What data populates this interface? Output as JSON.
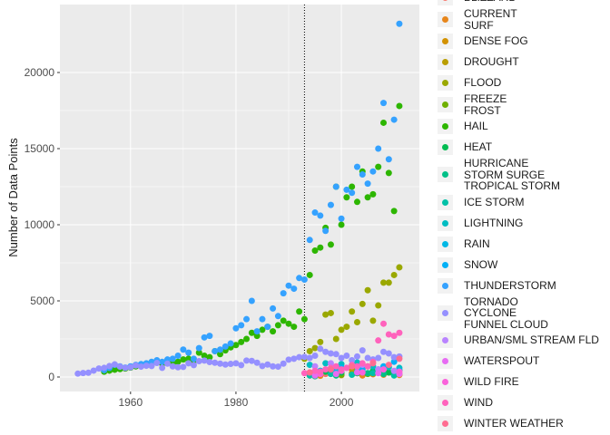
{
  "chart_data": {
    "type": "scatter",
    "ylabel": "Number of Data Points",
    "xlim": [
      1946.6,
      2014.8
    ],
    "xticks": [
      1960,
      1980,
      2000
    ],
    "ylim": [
      -952,
      24464
    ],
    "yticks": [
      0,
      5000,
      10000,
      15000,
      20000
    ],
    "grid": true,
    "vlines": [
      1993
    ],
    "legend": "right",
    "series": [
      {
        "name": "BLIZZARD",
        "color": "#F8766D",
        "x": [
          1994,
          1997,
          2000,
          2003,
          2006,
          2009,
          2011
        ],
        "values": [
          100,
          200,
          150,
          250,
          180,
          300,
          200
        ]
      },
      {
        "name": "CURRENT\nSURF",
        "color": "#E7861B",
        "x": [
          1996,
          2000,
          2004,
          2008,
          2011
        ],
        "values": [
          80,
          120,
          100,
          150,
          130
        ]
      },
      {
        "name": "DENSE FOG",
        "color": "#D39200",
        "x": [
          1994,
          1998,
          2002,
          2006,
          2010
        ],
        "values": [
          150,
          300,
          250,
          200,
          180
        ]
      },
      {
        "name": "DROUGHT",
        "color": "#BA9E00",
        "x": [
          1996,
          1999,
          2002,
          2005,
          2008,
          2011
        ],
        "values": [
          400,
          600,
          500,
          700,
          300,
          450
        ]
      },
      {
        "name": "FLOOD",
        "color": "#9AA800",
        "x": [
          1993,
          1994,
          1995,
          1996,
          1997,
          1998,
          1999,
          2000,
          2001,
          2002,
          2003,
          2004,
          2005,
          2006,
          2007,
          2008,
          2009,
          2010,
          2011
        ],
        "values": [
          1200,
          1700,
          1900,
          2300,
          4100,
          4200,
          2500,
          3100,
          3300,
          4300,
          3600,
          4800,
          5700,
          3700,
          4700,
          6200,
          6200,
          6700,
          7200
        ]
      },
      {
        "name": "FREEZE\nFROST",
        "color": "#6FB000",
        "x": [
          1995,
          2000,
          2005,
          2010
        ],
        "values": [
          100,
          150,
          200,
          180
        ]
      },
      {
        "name": "HAIL",
        "color": "#2DB600",
        "x": [
          1955,
          1956,
          1957,
          1958,
          1959,
          1960,
          1961,
          1962,
          1963,
          1964,
          1965,
          1966,
          1967,
          1968,
          1969,
          1970,
          1971,
          1972,
          1973,
          1974,
          1975,
          1976,
          1977,
          1978,
          1979,
          1980,
          1981,
          1982,
          1983,
          1984,
          1985,
          1986,
          1987,
          1988,
          1989,
          1990,
          1991,
          1992,
          1993,
          1994,
          1995,
          1996,
          1997,
          1998,
          1999,
          2000,
          2001,
          2002,
          2003,
          2004,
          2005,
          2006,
          2007,
          2008,
          2009,
          2010,
          2011
        ],
        "values": [
          350,
          420,
          480,
          520,
          560,
          620,
          700,
          780,
          760,
          880,
          950,
          860,
          980,
          880,
          1000,
          1150,
          1200,
          1050,
          1600,
          1400,
          1300,
          1700,
          1500,
          1750,
          1950,
          2100,
          2300,
          2500,
          2900,
          2700,
          3100,
          3300,
          3000,
          3400,
          3700,
          3500,
          3300,
          4300,
          3800,
          6700,
          8300,
          8500,
          9800,
          8700,
          12500,
          10000,
          11800,
          12500,
          11500,
          13500,
          11800,
          12000,
          13800,
          16700,
          13400,
          10900,
          17800
        ]
      },
      {
        "name": "HEAT",
        "color": "#00BC51",
        "x": [
          1994,
          1997,
          2000,
          2003,
          2006,
          2009
        ],
        "values": [
          200,
          350,
          300,
          250,
          400,
          300
        ]
      },
      {
        "name": "HURRICANE\nSTORM SURGE\nTROPICAL STORM",
        "color": "#00C087",
        "x": [
          1995,
          1999,
          2004,
          2005,
          2008
        ],
        "values": [
          50,
          100,
          300,
          250,
          200
        ]
      },
      {
        "name": "ICE STORM",
        "color": "#00C1A7",
        "x": [
          1994,
          1998,
          2002,
          2006,
          2010
        ],
        "values": [
          100,
          200,
          150,
          250,
          100
        ]
      },
      {
        "name": "LIGHTNING",
        "color": "#00BDC2",
        "x": [
          1994,
          1997,
          2000,
          2003,
          2006,
          2009,
          2011
        ],
        "values": [
          800,
          900,
          850,
          950,
          700,
          650,
          600
        ]
      },
      {
        "name": "RAIN",
        "color": "#00B8E5",
        "x": [
          1995,
          1999,
          2003,
          2007,
          2011
        ],
        "values": [
          300,
          400,
          350,
          500,
          450
        ]
      },
      {
        "name": "SNOW",
        "color": "#00B0F6",
        "x": [
          1996,
          2000,
          2004,
          2008,
          2010
        ],
        "values": [
          400,
          600,
          500,
          700,
          1000
        ]
      },
      {
        "name": "THUNDERSTORM",
        "color": "#35A2FF",
        "x": [
          1955,
          1956,
          1957,
          1958,
          1959,
          1960,
          1961,
          1962,
          1963,
          1964,
          1965,
          1966,
          1967,
          1968,
          1969,
          1970,
          1971,
          1972,
          1973,
          1974,
          1975,
          1976,
          1977,
          1978,
          1979,
          1980,
          1981,
          1982,
          1983,
          1984,
          1985,
          1986,
          1987,
          1988,
          1989,
          1990,
          1991,
          1992,
          1993,
          1994,
          1995,
          1996,
          1997,
          1998,
          1999,
          2000,
          2001,
          2002,
          2003,
          2004,
          2005,
          2006,
          2007,
          2008,
          2009,
          2010,
          2011
        ],
        "values": [
          450,
          600,
          800,
          700,
          620,
          700,
          800,
          850,
          900,
          1000,
          1100,
          1000,
          1150,
          1200,
          1400,
          1800,
          1600,
          1200,
          1900,
          2600,
          2700,
          1700,
          1800,
          2000,
          2200,
          3200,
          3400,
          3800,
          5000,
          3000,
          3800,
          3300,
          4500,
          4000,
          5500,
          6000,
          5800,
          6500,
          6400,
          9000,
          10800,
          10600,
          9600,
          11300,
          12500,
          10400,
          12300,
          12100,
          13800,
          13300,
          12700,
          13500,
          15000,
          18000,
          14300,
          16900,
          23200
        ]
      },
      {
        "name": "TORNADO\nCYCLONE\nFUNNEL CLOUD",
        "color": "#9590FF",
        "x": [
          1950,
          1951,
          1952,
          1953,
          1954,
          1955,
          1956,
          1957,
          1958,
          1959,
          1960,
          1961,
          1962,
          1963,
          1964,
          1965,
          1966,
          1967,
          1968,
          1969,
          1970,
          1971,
          1972,
          1973,
          1974,
          1975,
          1976,
          1977,
          1978,
          1979,
          1980,
          1981,
          1982,
          1983,
          1984,
          1985,
          1986,
          1987,
          1988,
          1989,
          1990,
          1991,
          1992,
          1993,
          1994,
          1995,
          1996,
          1997,
          1998,
          1999,
          2000,
          2001,
          2002,
          2003,
          2004,
          2005,
          2006,
          2007,
          2008,
          2009,
          2010,
          2011
        ],
        "values": [
          220,
          260,
          280,
          420,
          560,
          600,
          720,
          830,
          680,
          600,
          640,
          760,
          680,
          740,
          720,
          920,
          600,
          880,
          700,
          640,
          660,
          900,
          780,
          1040,
          1080,
          980,
          940,
          880,
          820,
          860,
          900,
          780,
          1080,
          1060,
          940,
          720,
          820,
          700,
          680,
          880,
          1140,
          1200,
          1300,
          1320,
          1250,
          1400,
          1850,
          1650,
          1550,
          1500,
          1250,
          1400,
          1100,
          1350,
          1750,
          1250,
          1150,
          1250,
          1650,
          1550,
          1300,
          1350
        ]
      },
      {
        "name": "URBAN/SML STREAM FLD",
        "color": "#B983FF",
        "x": [
          1995,
          1998,
          2001,
          2004,
          2007,
          2010
        ],
        "values": [
          700,
          900,
          600,
          800,
          500,
          400
        ]
      },
      {
        "name": "WATERSPOUT",
        "color": "#E76BF3",
        "x": [
          1995,
          1999,
          2003,
          2007,
          2011
        ],
        "values": [
          100,
          200,
          300,
          250,
          200
        ]
      },
      {
        "name": "WILD FIRE",
        "color": "#FA62DB",
        "x": [
          1996,
          2000,
          2004,
          2008,
          2011
        ],
        "values": [
          200,
          400,
          300,
          500,
          350
        ]
      },
      {
        "name": "WIND",
        "color": "#FF62BC",
        "x": [
          1993,
          1994,
          1995,
          1996,
          1997,
          1998,
          1999,
          2000,
          2001,
          2002,
          2003,
          2004,
          2005,
          2006,
          2007,
          2008,
          2009,
          2010,
          2011
        ],
        "values": [
          250,
          300,
          400,
          350,
          500,
          600,
          700,
          500,
          600,
          800,
          700,
          900,
          700,
          1000,
          2400,
          3500,
          2800,
          2700,
          2900
        ]
      },
      {
        "name": "WINTER WEATHER",
        "color": "#FF6C91",
        "x": [
          1994,
          1998,
          2002,
          2006,
          2009,
          2011
        ],
        "values": [
          300,
          500,
          700,
          900,
          800,
          1200
        ]
      }
    ]
  }
}
